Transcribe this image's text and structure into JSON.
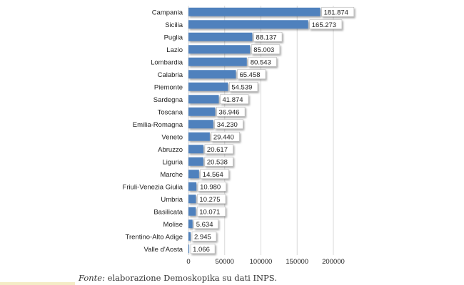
{
  "chart_data": {
    "type": "bar",
    "orientation": "horizontal",
    "categories": [
      "Campania",
      "Sicilia",
      "Puglia",
      "Lazio",
      "Lombardia",
      "Calabria",
      "Piemonte",
      "Sardegna",
      "Toscana",
      "Emilia-Romagna",
      "Veneto",
      "Abruzzo",
      "Liguria",
      "Marche",
      "Friuli-Venezia Giulia",
      "Umbria",
      "Basilicata",
      "Molise",
      "Trentino-Alto Adige",
      "Valle d'Aosta"
    ],
    "values": [
      181874,
      165273,
      88137,
      85003,
      80543,
      65458,
      54539,
      41874,
      36946,
      34230,
      29440,
      20617,
      20538,
      14564,
      10980,
      10275,
      10071,
      5634,
      2945,
      1066
    ],
    "value_labels": [
      "181.874",
      "165.273",
      "88.137",
      "85.003",
      "80.543",
      "65.458",
      "54.539",
      "41.874",
      "36.946",
      "34.230",
      "29.440",
      "20.617",
      "20.538",
      "14.564",
      "10.980",
      "10.275",
      "10.071",
      "5.634",
      "2.945",
      "1.066"
    ],
    "xlim": [
      0,
      200000
    ],
    "xticks": [
      0,
      50000,
      100000,
      150000,
      200000
    ],
    "xtick_labels": [
      "0",
      "50000",
      "100000",
      "150000",
      "200000"
    ],
    "grid": true,
    "bar_color": "#4f81bd",
    "title": "",
    "xlabel": "",
    "ylabel": ""
  },
  "source": {
    "prefix": "Fonte:",
    "text": " elaborazione Demoskopika su dati INPS."
  }
}
